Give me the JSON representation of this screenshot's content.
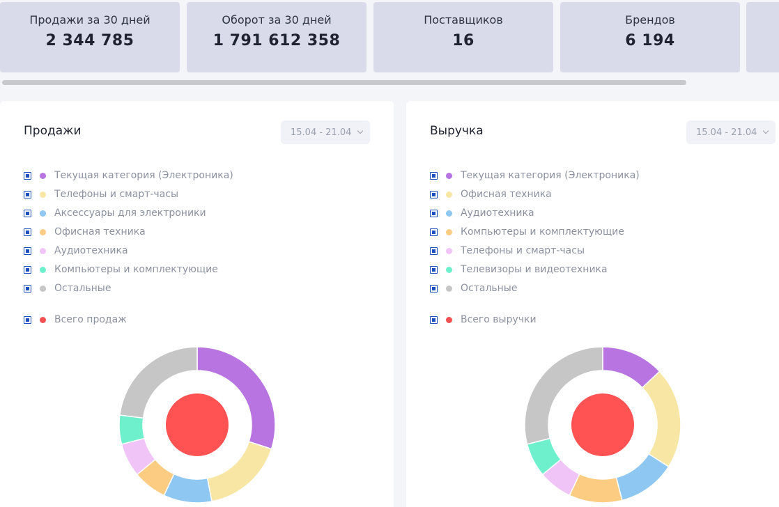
{
  "stats": [
    {
      "label": "Продажи за 30 дней",
      "value": "2 344 785"
    },
    {
      "label": "Оборот за 30 дней",
      "value": "1 791 612 358"
    },
    {
      "label": "Поставщиков",
      "value": "16"
    },
    {
      "label": "Брендов",
      "value": "6 194"
    }
  ],
  "sales": {
    "title": "Продажи",
    "date_range": "15.04 - 21.04",
    "legend": [
      {
        "label": "Текущая категория (Электроника)",
        "color": "#b874e0"
      },
      {
        "label": "Телефоны и смарт-часы",
        "color": "#f8e6a4"
      },
      {
        "label": "Аксессуары для электроники",
        "color": "#8ec7f1"
      },
      {
        "label": "Офисная техника",
        "color": "#fccc82"
      },
      {
        "label": "Аудиотехника",
        "color": "#f0c4f7"
      },
      {
        "label": "Компьютеры и комплектующие",
        "color": "#6ff0cd"
      },
      {
        "label": "Остальные",
        "color": "#c6c6c6"
      }
    ],
    "total": {
      "label": "Всего продаж",
      "color": "#f05050"
    }
  },
  "revenue": {
    "title": "Выручка",
    "date_range": "15.04 - 21.04",
    "legend": [
      {
        "label": "Текущая категория (Электроника)",
        "color": "#b874e0"
      },
      {
        "label": "Офисная техника",
        "color": "#f8e6a4"
      },
      {
        "label": "Аудиотехника",
        "color": "#8ec7f1"
      },
      {
        "label": "Компьютеры и комплектующие",
        "color": "#fccc82"
      },
      {
        "label": "Телефоны и смарт-часы",
        "color": "#f0c4f7"
      },
      {
        "label": "Телевизоры и видеотехника",
        "color": "#6ff0cd"
      },
      {
        "label": "Остальные",
        "color": "#c6c6c6"
      }
    ],
    "total": {
      "label": "Всего выручки",
      "color": "#f05050"
    }
  },
  "chart_data": [
    {
      "type": "pie",
      "categories": [
        "Текущая категория (Электроника)",
        "Телефоны и смарт-часы",
        "Аксессуары для электроники",
        "Офисная техника",
        "Аудиотехника",
        "Компьютеры и комплектующие",
        "Остальные"
      ],
      "values": [
        30,
        17,
        10,
        7,
        7,
        6,
        23
      ],
      "colors": [
        "#b874e0",
        "#f8e6a4",
        "#8ec7f1",
        "#fccc82",
        "#f0c4f7",
        "#6ff0cd",
        "#c6c6c6"
      ],
      "center_color": "#ff5252"
    },
    {
      "type": "pie",
      "categories": [
        "Текущая категория (Электроника)",
        "Офисная техника",
        "Аудиотехника",
        "Компьютеры и комплектующие",
        "Телефоны и смарт-часы",
        "Телевизоры и видеотехника",
        "Остальные"
      ],
      "values": [
        13,
        21,
        12,
        11,
        7,
        7,
        29
      ],
      "colors": [
        "#b874e0",
        "#f8e6a4",
        "#8ec7f1",
        "#fccc82",
        "#f0c4f7",
        "#6ff0cd",
        "#c6c6c6"
      ],
      "center_color": "#ff5252"
    }
  ]
}
